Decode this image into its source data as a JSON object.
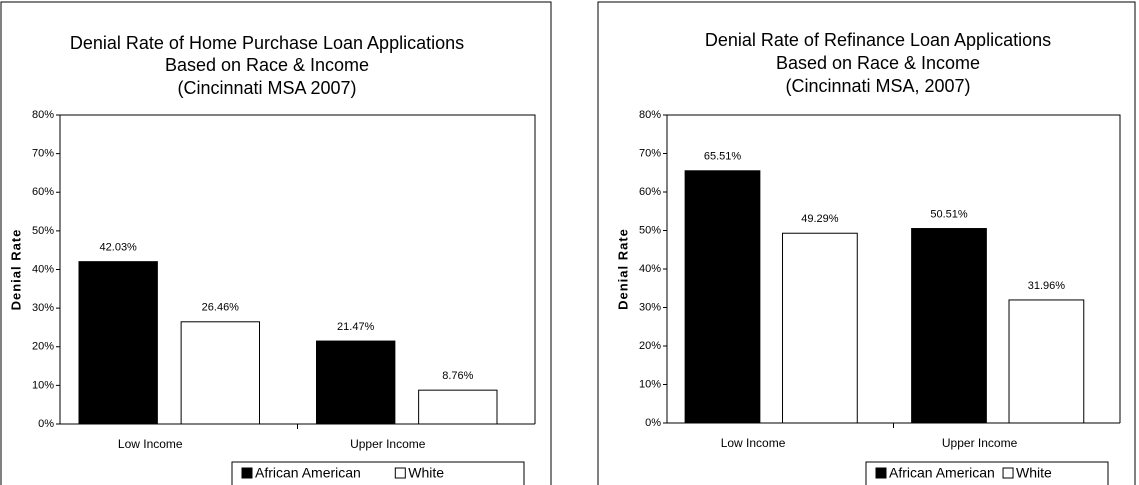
{
  "chart_data": [
    {
      "type": "bar",
      "title": [
        "Denial Rate of Home Purchase Loan Applications",
        "Based on Race & Income",
        "(Cincinnati MSA 2007)"
      ],
      "ylabel": "Denial Rate",
      "categories": [
        "Low Income",
        "Upper Income"
      ],
      "series": [
        {
          "name": "African American",
          "color": "#000000",
          "values": [
            42.03,
            21.47
          ],
          "value_labels": [
            "42.03%",
            "21.47%"
          ]
        },
        {
          "name": "White",
          "color": "#ffffff",
          "values": [
            26.46,
            8.76
          ],
          "value_labels": [
            "26.46%",
            "8.76%"
          ]
        }
      ],
      "ylim": [
        0,
        80
      ],
      "yticks": [
        {
          "value": 0,
          "label": "0%"
        },
        {
          "value": 10,
          "label": "10%"
        },
        {
          "value": 20,
          "label": "20%"
        },
        {
          "value": 30,
          "label": "30%"
        },
        {
          "value": 40,
          "label": "40%"
        },
        {
          "value": 50,
          "label": "50%"
        },
        {
          "value": 60,
          "label": "60%"
        },
        {
          "value": 70,
          "label": "70%"
        },
        {
          "value": 80,
          "label": "80%"
        }
      ],
      "legend": "bottom-right"
    },
    {
      "type": "bar",
      "title": [
        "Denial Rate of Refinance Loan Applications",
        "Based on Race & Income",
        "(Cincinnati MSA, 2007)"
      ],
      "ylabel": "Denial Rate",
      "categories": [
        "Low Income",
        "Upper Income"
      ],
      "series": [
        {
          "name": "African American",
          "color": "#000000",
          "values": [
            65.51,
            50.51
          ],
          "value_labels": [
            "65.51%",
            "50.51%"
          ]
        },
        {
          "name": "White",
          "color": "#ffffff",
          "values": [
            49.29,
            31.96
          ],
          "value_labels": [
            "49.29%",
            "31.96%"
          ]
        }
      ],
      "ylim": [
        0,
        80
      ],
      "yticks": [
        {
          "value": 0,
          "label": "0%"
        },
        {
          "value": 10,
          "label": "10%"
        },
        {
          "value": 20,
          "label": "20%"
        },
        {
          "value": 30,
          "label": "30%"
        },
        {
          "value": 40,
          "label": "40%"
        },
        {
          "value": 50,
          "label": "50%"
        },
        {
          "value": 60,
          "label": "60%"
        },
        {
          "value": 70,
          "label": "70%"
        },
        {
          "value": 80,
          "label": "80%"
        }
      ],
      "legend": "bottom-right"
    }
  ]
}
